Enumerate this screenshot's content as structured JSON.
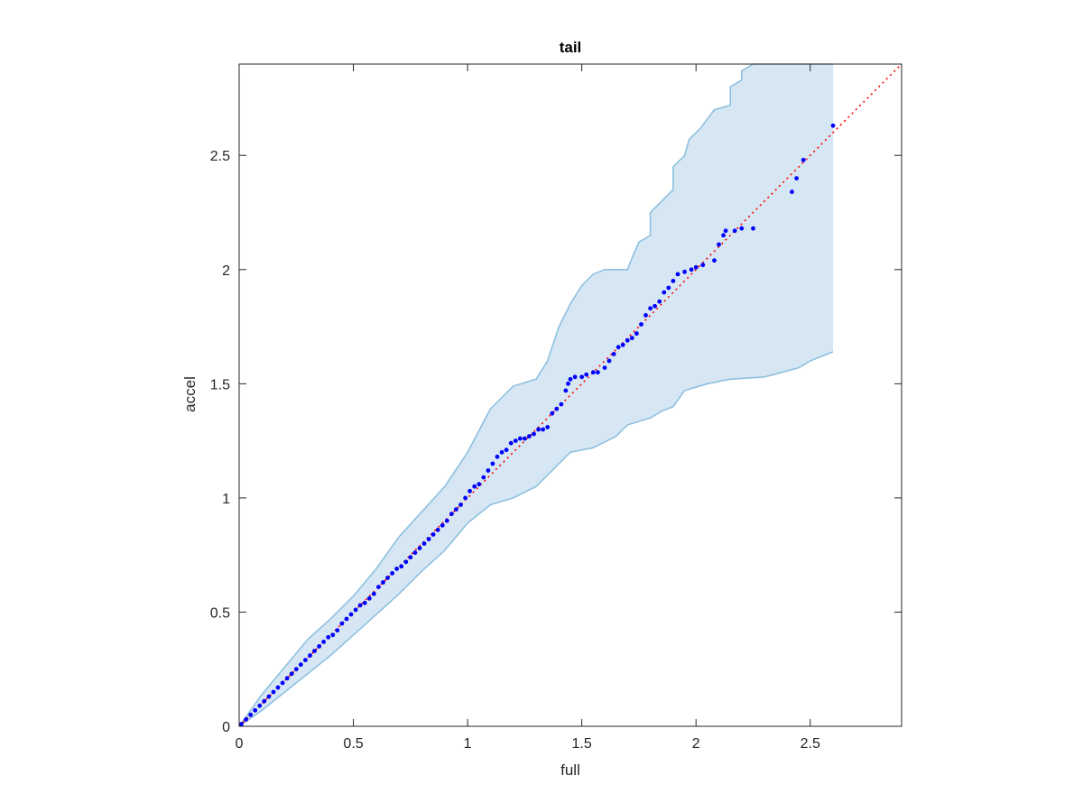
{
  "chart_data": {
    "type": "scatter",
    "title": "tail",
    "xlabel": "full",
    "ylabel": "accel",
    "xlim": [
      0,
      2.9
    ],
    "ylim": [
      0,
      2.9
    ],
    "xticks": [
      {
        "value": 0,
        "label": "0"
      },
      {
        "value": 0.5,
        "label": "0.5"
      },
      {
        "value": 1,
        "label": "1"
      },
      {
        "value": 1.5,
        "label": "1.5"
      },
      {
        "value": 2,
        "label": "2"
      },
      {
        "value": 2.5,
        "label": "2.5"
      }
    ],
    "yticks": [
      {
        "value": 0,
        "label": "0"
      },
      {
        "value": 0.5,
        "label": "0.5"
      },
      {
        "value": 1,
        "label": "1"
      },
      {
        "value": 1.5,
        "label": "1.5"
      },
      {
        "value": 2,
        "label": "2"
      },
      {
        "value": 2.5,
        "label": "2.5"
      }
    ],
    "grid": false,
    "colors": {
      "points": "#0000ff",
      "reference_line": "#ff0000",
      "band_fill": "#d6e7f3",
      "band_edge": "#8fc0e0",
      "axes": "#262626"
    },
    "reference_line": {
      "x": [
        0,
        2.9
      ],
      "y": [
        0,
        2.9
      ],
      "style": "dotted"
    },
    "band": {
      "upper": [
        [
          0,
          0
        ],
        [
          0.1,
          0.14
        ],
        [
          0.2,
          0.26
        ],
        [
          0.3,
          0.38
        ],
        [
          0.4,
          0.47
        ],
        [
          0.5,
          0.57
        ],
        [
          0.6,
          0.69
        ],
        [
          0.7,
          0.83
        ],
        [
          0.8,
          0.94
        ],
        [
          0.9,
          1.05
        ],
        [
          1.0,
          1.2
        ],
        [
          1.1,
          1.39
        ],
        [
          1.2,
          1.49
        ],
        [
          1.3,
          1.52
        ],
        [
          1.35,
          1.6
        ],
        [
          1.4,
          1.75
        ],
        [
          1.45,
          1.85
        ],
        [
          1.5,
          1.93
        ],
        [
          1.55,
          1.98
        ],
        [
          1.6,
          2.0
        ],
        [
          1.7,
          2.0
        ],
        [
          1.72,
          2.05
        ],
        [
          1.75,
          2.12
        ],
        [
          1.8,
          2.15
        ],
        [
          1.8,
          2.25
        ],
        [
          1.85,
          2.3
        ],
        [
          1.9,
          2.35
        ],
        [
          1.9,
          2.45
        ],
        [
          1.95,
          2.5
        ],
        [
          1.97,
          2.57
        ],
        [
          2.0,
          2.6
        ],
        [
          2.02,
          2.62
        ],
        [
          2.08,
          2.7
        ],
        [
          2.15,
          2.72
        ],
        [
          2.15,
          2.8
        ],
        [
          2.2,
          2.83
        ],
        [
          2.2,
          2.87
        ],
        [
          2.25,
          2.9
        ],
        [
          2.6,
          2.9
        ]
      ],
      "lower": [
        [
          0,
          0
        ],
        [
          0.1,
          0.07
        ],
        [
          0.2,
          0.15
        ],
        [
          0.3,
          0.23
        ],
        [
          0.4,
          0.31
        ],
        [
          0.5,
          0.4
        ],
        [
          0.6,
          0.49
        ],
        [
          0.7,
          0.58
        ],
        [
          0.8,
          0.68
        ],
        [
          0.9,
          0.77
        ],
        [
          1.0,
          0.89
        ],
        [
          1.1,
          0.97
        ],
        [
          1.2,
          1.0
        ],
        [
          1.3,
          1.05
        ],
        [
          1.35,
          1.1
        ],
        [
          1.4,
          1.15
        ],
        [
          1.45,
          1.2
        ],
        [
          1.55,
          1.22
        ],
        [
          1.65,
          1.27
        ],
        [
          1.7,
          1.32
        ],
        [
          1.8,
          1.35
        ],
        [
          1.85,
          1.38
        ],
        [
          1.9,
          1.4
        ],
        [
          1.95,
          1.47
        ],
        [
          2.05,
          1.5
        ],
        [
          2.15,
          1.52
        ],
        [
          2.3,
          1.53
        ],
        [
          2.45,
          1.57
        ],
        [
          2.5,
          1.6
        ],
        [
          2.6,
          1.64
        ]
      ]
    },
    "points": {
      "x": [
        0.01,
        0.03,
        0.05,
        0.07,
        0.09,
        0.11,
        0.13,
        0.15,
        0.17,
        0.19,
        0.21,
        0.23,
        0.25,
        0.27,
        0.29,
        0.31,
        0.33,
        0.35,
        0.37,
        0.39,
        0.41,
        0.43,
        0.45,
        0.47,
        0.49,
        0.51,
        0.53,
        0.55,
        0.57,
        0.59,
        0.61,
        0.63,
        0.65,
        0.67,
        0.69,
        0.71,
        0.73,
        0.75,
        0.77,
        0.79,
        0.81,
        0.83,
        0.85,
        0.87,
        0.89,
        0.91,
        0.93,
        0.95,
        0.97,
        0.99,
        1.01,
        1.03,
        1.05,
        1.07,
        1.09,
        1.11,
        1.13,
        1.15,
        1.17,
        1.19,
        1.21,
        1.23,
        1.25,
        1.27,
        1.29,
        1.31,
        1.33,
        1.35,
        1.37,
        1.39,
        1.41,
        1.43,
        1.44,
        1.45,
        1.47,
        1.5,
        1.52,
        1.55,
        1.57,
        1.6,
        1.62,
        1.64,
        1.66,
        1.68,
        1.7,
        1.72,
        1.74,
        1.76,
        1.78,
        1.8,
        1.82,
        1.84,
        1.86,
        1.88,
        1.9,
        1.92,
        1.95,
        1.98,
        2.0,
        2.03,
        2.08,
        2.1,
        2.12,
        2.13,
        2.17,
        2.2,
        2.25,
        2.42,
        2.44,
        2.47,
        2.6
      ],
      "y": [
        0.01,
        0.03,
        0.05,
        0.07,
        0.09,
        0.11,
        0.13,
        0.15,
        0.17,
        0.19,
        0.21,
        0.23,
        0.25,
        0.27,
        0.29,
        0.31,
        0.33,
        0.35,
        0.37,
        0.39,
        0.4,
        0.42,
        0.45,
        0.47,
        0.49,
        0.51,
        0.53,
        0.54,
        0.56,
        0.58,
        0.61,
        0.63,
        0.65,
        0.67,
        0.69,
        0.7,
        0.72,
        0.74,
        0.76,
        0.78,
        0.8,
        0.82,
        0.84,
        0.86,
        0.88,
        0.9,
        0.93,
        0.95,
        0.97,
        1.0,
        1.03,
        1.05,
        1.06,
        1.09,
        1.12,
        1.15,
        1.18,
        1.2,
        1.21,
        1.24,
        1.25,
        1.26,
        1.26,
        1.27,
        1.28,
        1.3,
        1.3,
        1.31,
        1.37,
        1.39,
        1.41,
        1.47,
        1.5,
        1.52,
        1.53,
        1.53,
        1.54,
        1.55,
        1.55,
        1.57,
        1.6,
        1.63,
        1.66,
        1.67,
        1.69,
        1.7,
        1.72,
        1.76,
        1.8,
        1.83,
        1.84,
        1.86,
        1.9,
        1.92,
        1.95,
        1.98,
        1.99,
        2.0,
        2.01,
        2.02,
        2.04,
        2.11,
        2.15,
        2.17,
        2.17,
        2.18,
        2.18,
        2.34,
        2.4,
        2.48,
        2.63
      ]
    }
  }
}
